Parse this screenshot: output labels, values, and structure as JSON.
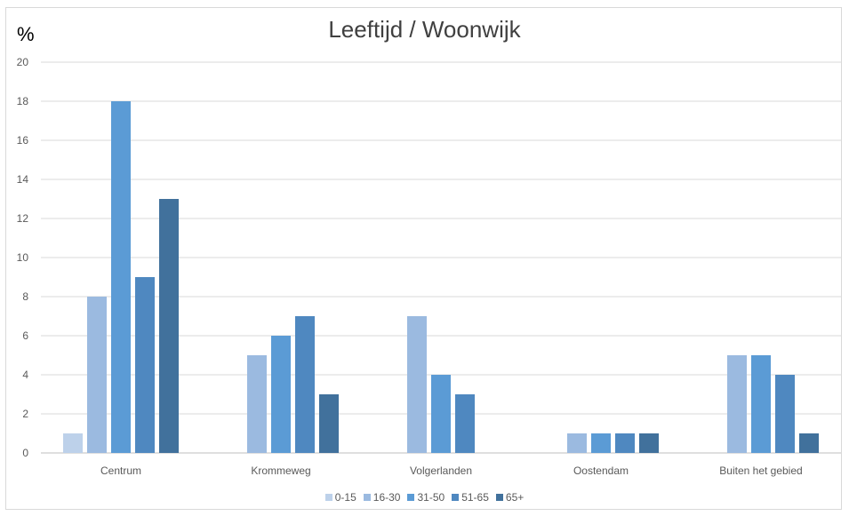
{
  "chart_data": {
    "type": "bar",
    "title": "Leeftijd / Woonwijk",
    "ylabel": "%",
    "xlabel": "",
    "ylim": [
      0,
      20
    ],
    "yticks": [
      0,
      2,
      4,
      6,
      8,
      10,
      12,
      14,
      16,
      18,
      20
    ],
    "categories": [
      "Centrum",
      "Krommeweg",
      "Volgerlanden",
      "Oostendam",
      "Buiten het gebied"
    ],
    "series": [
      {
        "name": "0-15",
        "color": "#bdd1ea",
        "values": [
          1,
          0,
          0,
          0,
          0
        ]
      },
      {
        "name": "16-30",
        "color": "#9bbae0",
        "values": [
          8,
          5,
          7,
          1,
          5
        ]
      },
      {
        "name": "31-50",
        "color": "#5b9bd5",
        "values": [
          18,
          6,
          4,
          1,
          5
        ]
      },
      {
        "name": "51-65",
        "color": "#4f88c0",
        "values": [
          9,
          7,
          3,
          1,
          4
        ]
      },
      {
        "name": "65+",
        "color": "#41719c",
        "values": [
          13,
          3,
          0,
          1,
          1
        ]
      }
    ],
    "grid": true,
    "legend_position": "bottom"
  }
}
